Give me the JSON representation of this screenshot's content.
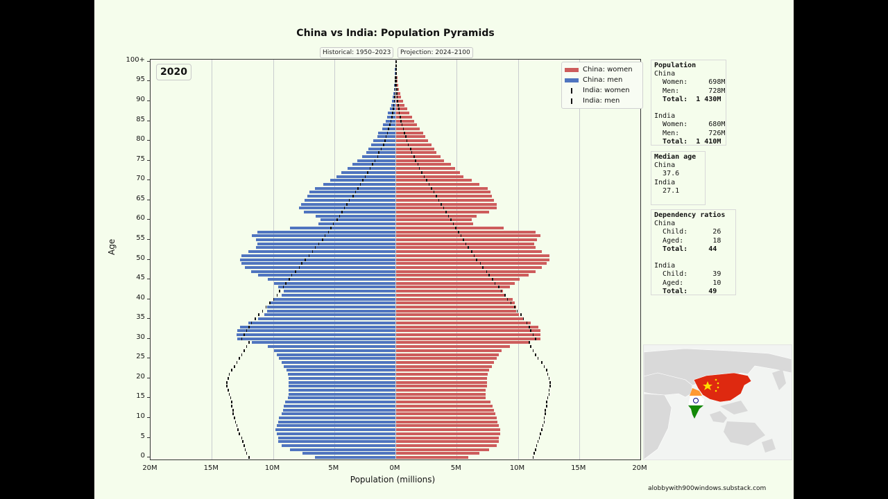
{
  "title": "China vs India: Population Pyramids",
  "badges": {
    "historical": "Historical: 1950–2023",
    "projection": "Projection: 2024–2100"
  },
  "year": "2020",
  "legend": {
    "china_women": "China: women",
    "china_men": "China: men",
    "india_women": "India: women",
    "india_men": "India: men"
  },
  "colors": {
    "china_women": "#cd5c5c",
    "china_men": "#4f74bf",
    "india": "#111111",
    "background": "#f5fdec"
  },
  "axes": {
    "xlabel": "Population (millions)",
    "ylabel": "Age",
    "xticks": [
      "20M",
      "15M",
      "10M",
      "5M",
      "0M",
      "5M",
      "10M",
      "15M",
      "20M"
    ],
    "yticks": [
      "100+",
      "95",
      "90",
      "85",
      "80",
      "75",
      "70",
      "65",
      "60",
      "55",
      "50",
      "45",
      "40",
      "35",
      "30",
      "25",
      "20",
      "15",
      "10",
      "5",
      "0"
    ]
  },
  "population": {
    "heading": "Population",
    "china": {
      "label": "China",
      "women_label": "Women:",
      "women": "698M",
      "men_label": "Men:",
      "men": "728M",
      "total_label": "Total:",
      "total": "1 430M"
    },
    "india": {
      "label": "India",
      "women_label": "Women:",
      "women": "680M",
      "men_label": "Men:",
      "men": "726M",
      "total_label": "Total:",
      "total": "1 410M"
    }
  },
  "median_age": {
    "heading": "Median age",
    "china_label": "China",
    "china": "37.6",
    "india_label": "India",
    "india": "27.1"
  },
  "dependency": {
    "heading": "Dependency ratios",
    "china": {
      "label": "China",
      "child_label": "Child:",
      "child": "26",
      "aged_label": "Aged:",
      "aged": "18",
      "total_label": "Total:",
      "total": "44"
    },
    "india": {
      "label": "India",
      "child_label": "Child:",
      "child": "39",
      "aged_label": "Aged:",
      "aged": "10",
      "total_label": "Total:",
      "total": "49"
    }
  },
  "credit": "alobbywith900windows.substack.com",
  "chart_data": {
    "type": "bar",
    "title": "China vs India: Population Pyramids",
    "subtitle": "2020",
    "xlabel": "Population (millions)",
    "ylabel": "Age",
    "xlim": [
      -20,
      20
    ],
    "grid": "vertical",
    "legend_position": "upper right",
    "ages": [
      0,
      1,
      2,
      3,
      4,
      5,
      6,
      7,
      8,
      9,
      10,
      11,
      12,
      13,
      14,
      15,
      16,
      17,
      18,
      19,
      20,
      21,
      22,
      23,
      24,
      25,
      26,
      27,
      28,
      29,
      30,
      31,
      32,
      33,
      34,
      35,
      36,
      37,
      38,
      39,
      40,
      41,
      42,
      43,
      44,
      45,
      46,
      47,
      48,
      49,
      50,
      51,
      52,
      53,
      54,
      55,
      56,
      57,
      58,
      59,
      60,
      61,
      62,
      63,
      64,
      65,
      66,
      67,
      68,
      69,
      70,
      71,
      72,
      73,
      74,
      75,
      76,
      77,
      78,
      79,
      80,
      81,
      82,
      83,
      84,
      85,
      86,
      87,
      88,
      89,
      90,
      91,
      92,
      93,
      94,
      95,
      96,
      97,
      98,
      99,
      100
    ],
    "series": [
      {
        "name": "China: men",
        "values": [
          6.6,
          7.6,
          8.6,
          9.3,
          9.6,
          9.6,
          9.7,
          9.8,
          9.7,
          9.6,
          9.5,
          9.3,
          9.2,
          9.1,
          9.0,
          8.8,
          8.7,
          8.7,
          8.7,
          8.7,
          8.7,
          8.8,
          8.9,
          9.1,
          9.3,
          9.5,
          9.7,
          9.9,
          10.4,
          11.7,
          12.9,
          13.0,
          12.9,
          12.7,
          12.0,
          11.2,
          10.7,
          10.5,
          10.5,
          10.3,
          10.0,
          9.3,
          9.1,
          9.6,
          9.9,
          10.4,
          11.2,
          11.8,
          12.3,
          12.6,
          12.7,
          12.6,
          12.0,
          11.4,
          11.3,
          11.4,
          11.7,
          11.3,
          8.6,
          6.3,
          6.1,
          6.5,
          7.5,
          7.9,
          7.7,
          7.4,
          7.2,
          7.0,
          6.6,
          5.9,
          5.3,
          4.8,
          4.4,
          3.9,
          3.5,
          3.1,
          2.7,
          2.4,
          2.2,
          2.0,
          1.8,
          1.5,
          1.4,
          1.1,
          1.0,
          0.8,
          0.7,
          0.6,
          0.45,
          0.35,
          0.3,
          0.22,
          0.16,
          0.12,
          0.09,
          0.07,
          0.05,
          0.04,
          0.03,
          0.02,
          0.02
        ]
      },
      {
        "name": "China: women",
        "values": [
          5.9,
          6.8,
          7.6,
          8.2,
          8.4,
          8.4,
          8.5,
          8.5,
          8.4,
          8.3,
          8.2,
          8.1,
          8.0,
          7.9,
          7.7,
          7.3,
          7.3,
          7.3,
          7.4,
          7.4,
          7.4,
          7.5,
          7.6,
          7.8,
          8.0,
          8.2,
          8.4,
          8.6,
          9.3,
          10.8,
          11.8,
          11.8,
          11.8,
          11.6,
          11.0,
          10.4,
          10.0,
          9.8,
          9.8,
          9.7,
          9.5,
          8.9,
          8.7,
          9.3,
          9.7,
          10.1,
          10.8,
          11.4,
          11.9,
          12.3,
          12.5,
          12.5,
          11.9,
          11.4,
          11.3,
          11.5,
          11.8,
          11.4,
          8.8,
          6.3,
          6.2,
          6.6,
          7.6,
          8.2,
          8.2,
          8.0,
          7.8,
          7.7,
          7.5,
          6.8,
          6.2,
          5.5,
          5.2,
          4.8,
          4.5,
          3.9,
          3.6,
          3.3,
          3.1,
          2.9,
          2.6,
          2.4,
          2.2,
          1.9,
          1.7,
          1.5,
          1.3,
          1.1,
          0.9,
          0.7,
          0.55,
          0.42,
          0.32,
          0.24,
          0.17,
          0.12,
          0.09,
          0.06,
          0.05,
          0.03,
          0.03
        ]
      },
      {
        "name": "India: men",
        "values": [
          12.0,
          12.2,
          12.3,
          12.4,
          12.5,
          12.6,
          12.8,
          12.9,
          13.0,
          13.1,
          13.2,
          13.3,
          13.3,
          13.4,
          13.4,
          13.5,
          13.6,
          13.7,
          13.8,
          13.8,
          13.7,
          13.6,
          13.4,
          13.2,
          13.0,
          12.8,
          12.6,
          12.4,
          12.2,
          12.0,
          12.6,
          12.4,
          12.2,
          12.0,
          11.8,
          11.5,
          11.2,
          10.9,
          10.6,
          10.3,
          10.0,
          9.7,
          9.5,
          9.2,
          9.0,
          8.7,
          8.5,
          8.2,
          7.9,
          7.7,
          7.4,
          7.1,
          6.8,
          6.6,
          6.3,
          6.0,
          5.8,
          5.5,
          5.3,
          5.1,
          4.8,
          4.6,
          4.4,
          4.2,
          4.0,
          3.8,
          3.5,
          3.3,
          3.1,
          2.9,
          2.7,
          2.5,
          2.3,
          2.1,
          1.9,
          1.7,
          1.5,
          1.4,
          1.2,
          1.0,
          0.9,
          0.8,
          0.7,
          0.6,
          0.5,
          0.4,
          0.33,
          0.27,
          0.22,
          0.17,
          0.13,
          0.1,
          0.08,
          0.06,
          0.05,
          0.04,
          0.03,
          0.02,
          0.02,
          0.01,
          0.01
        ]
      },
      {
        "name": "India: women",
        "values": [
          11.2,
          11.3,
          11.4,
          11.5,
          11.6,
          11.7,
          11.8,
          11.9,
          12.0,
          12.1,
          12.1,
          12.2,
          12.2,
          12.3,
          12.3,
          12.4,
          12.5,
          12.5,
          12.6,
          12.6,
          12.5,
          12.4,
          12.3,
          12.1,
          11.9,
          11.6,
          11.4,
          11.2,
          11.0,
          10.9,
          11.4,
          11.2,
          11.0,
          10.9,
          10.7,
          10.4,
          10.2,
          9.9,
          9.7,
          9.4,
          9.1,
          8.9,
          8.6,
          8.4,
          8.1,
          7.9,
          7.6,
          7.4,
          7.1,
          6.9,
          6.6,
          6.4,
          6.2,
          5.9,
          5.7,
          5.5,
          5.3,
          5.1,
          4.9,
          4.7,
          4.5,
          4.3,
          4.1,
          3.9,
          3.7,
          3.5,
          3.3,
          3.1,
          2.9,
          2.7,
          2.5,
          2.3,
          2.1,
          1.9,
          1.8,
          1.6,
          1.5,
          1.3,
          1.2,
          1.0,
          0.9,
          0.8,
          0.7,
          0.6,
          0.5,
          0.42,
          0.35,
          0.28,
          0.23,
          0.18,
          0.14,
          0.11,
          0.08,
          0.06,
          0.05,
          0.04,
          0.03,
          0.02,
          0.02,
          0.01,
          0.01
        ]
      }
    ]
  }
}
